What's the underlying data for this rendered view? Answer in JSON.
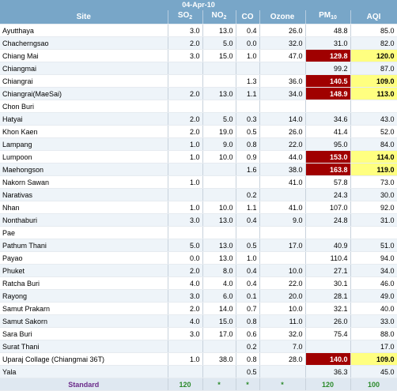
{
  "date": "04-Apr-10",
  "columns": {
    "site": "Site",
    "so2_main": "SO",
    "so2_sub": "2",
    "no2_main": "NO",
    "no2_sub": "2",
    "co": "CO",
    "ozone": "Ozone",
    "pm10_main": "PM",
    "pm10_sub": "10",
    "aqi": "AQI"
  },
  "rows": [
    {
      "site": "Ayutthaya",
      "so2": "3.0",
      "no2": "13.0",
      "co": "0.4",
      "ozone": "26.0",
      "pm10": "48.8",
      "aqi": "85.0"
    },
    {
      "site": "Chacherngsao",
      "so2": "2.0",
      "no2": "5.0",
      "co": "0.0",
      "ozone": "32.0",
      "pm10": "31.0",
      "aqi": "82.0"
    },
    {
      "site": "Chiang Mai",
      "so2": "3.0",
      "no2": "15.0",
      "co": "1.0",
      "ozone": "47.0",
      "pm10": "129.8",
      "aqi": "120.0"
    },
    {
      "site": "Chiangmai",
      "so2": "",
      "no2": "",
      "co": "",
      "ozone": "",
      "pm10": "99.2",
      "aqi": "87.0"
    },
    {
      "site": "Chiangrai",
      "so2": "",
      "no2": "",
      "co": "1.3",
      "ozone": "36.0",
      "pm10": "140.5",
      "aqi": "109.0"
    },
    {
      "site": "Chiangrai(MaeSai)",
      "so2": "2.0",
      "no2": "13.0",
      "co": "1.1",
      "ozone": "34.0",
      "pm10": "148.9",
      "aqi": "113.0"
    },
    {
      "site": "Chon Buri",
      "so2": "",
      "no2": "",
      "co": "",
      "ozone": "",
      "pm10": "",
      "aqi": ""
    },
    {
      "site": "Hatyai",
      "so2": "2.0",
      "no2": "5.0",
      "co": "0.3",
      "ozone": "14.0",
      "pm10": "34.6",
      "aqi": "43.0"
    },
    {
      "site": "Khon Kaen",
      "so2": "2.0",
      "no2": "19.0",
      "co": "0.5",
      "ozone": "26.0",
      "pm10": "41.4",
      "aqi": "52.0"
    },
    {
      "site": "Lampang",
      "so2": "1.0",
      "no2": "9.0",
      "co": "0.8",
      "ozone": "22.0",
      "pm10": "95.0",
      "aqi": "84.0"
    },
    {
      "site": "Lumpoon",
      "so2": "1.0",
      "no2": "10.0",
      "co": "0.9",
      "ozone": "44.0",
      "pm10": "153.0",
      "aqi": "114.0"
    },
    {
      "site": "Maehongson",
      "so2": "",
      "no2": "",
      "co": "1.6",
      "ozone": "38.0",
      "pm10": "163.8",
      "aqi": "119.0"
    },
    {
      "site": "Nakorn Sawan",
      "so2": "1.0",
      "no2": "",
      "co": "",
      "ozone": "41.0",
      "pm10": "57.8",
      "aqi": "73.0"
    },
    {
      "site": "Narativas",
      "so2": "",
      "no2": "",
      "co": "0.2",
      "ozone": "",
      "pm10": "24.3",
      "aqi": "30.0"
    },
    {
      "site": "Nhan",
      "so2": "1.0",
      "no2": "10.0",
      "co": "1.1",
      "ozone": "41.0",
      "pm10": "107.0",
      "aqi": "92.0"
    },
    {
      "site": "Nonthaburi",
      "so2": "3.0",
      "no2": "13.0",
      "co": "0.4",
      "ozone": "9.0",
      "pm10": "24.8",
      "aqi": "31.0"
    },
    {
      "site": "Pae",
      "so2": "",
      "no2": "",
      "co": "",
      "ozone": "",
      "pm10": "",
      "aqi": ""
    },
    {
      "site": "Pathum Thani",
      "so2": "5.0",
      "no2": "13.0",
      "co": "0.5",
      "ozone": "17.0",
      "pm10": "40.9",
      "aqi": "51.0"
    },
    {
      "site": "Payao",
      "so2": "0.0",
      "no2": "13.0",
      "co": "1.0",
      "ozone": "",
      "pm10": "110.4",
      "aqi": "94.0"
    },
    {
      "site": "Phuket",
      "so2": "2.0",
      "no2": "8.0",
      "co": "0.4",
      "ozone": "10.0",
      "pm10": "27.1",
      "aqi": "34.0"
    },
    {
      "site": "Ratcha Buri",
      "so2": "4.0",
      "no2": "4.0",
      "co": "0.4",
      "ozone": "22.0",
      "pm10": "30.1",
      "aqi": "46.0"
    },
    {
      "site": "Rayong",
      "so2": "3.0",
      "no2": "6.0",
      "co": "0.1",
      "ozone": "20.0",
      "pm10": "28.1",
      "aqi": "49.0"
    },
    {
      "site": "Samut Prakarn",
      "so2": "2.0",
      "no2": "14.0",
      "co": "0.7",
      "ozone": "10.0",
      "pm10": "32.1",
      "aqi": "40.0"
    },
    {
      "site": "Samut Sakorn",
      "so2": "4.0",
      "no2": "15.0",
      "co": "0.8",
      "ozone": "11.0",
      "pm10": "26.0",
      "aqi": "33.0"
    },
    {
      "site": "Sara Buri",
      "so2": "3.0",
      "no2": "17.0",
      "co": "0.6",
      "ozone": "32.0",
      "pm10": "75.4",
      "aqi": "88.0"
    },
    {
      "site": "Surat Thani",
      "so2": "",
      "no2": "",
      "co": "0.2",
      "ozone": "7.0",
      "pm10": "",
      "aqi": "17.0"
    },
    {
      "site": "Uparaj Collage (Chiangmai 36T)",
      "so2": "1.0",
      "no2": "38.0",
      "co": "0.8",
      "ozone": "28.0",
      "pm10": "140.0",
      "aqi": "109.0"
    },
    {
      "site": "Yala",
      "so2": "",
      "no2": "",
      "co": "0.5",
      "ozone": "",
      "pm10": "36.3",
      "aqi": "45.0"
    }
  ],
  "highlight": {
    "pm10_red_rows": [
      2,
      4,
      5,
      10,
      11,
      26
    ],
    "aqi_yellow_rows": [
      2,
      4,
      5,
      10,
      11,
      26
    ]
  },
  "standard": {
    "label": "Standard",
    "so2": "120",
    "no2": "*",
    "co": "*",
    "ozone": "*",
    "pm10": "120",
    "aqi": "100"
  },
  "colors": {
    "header_bg": "#78a6c8",
    "exceed_pm10": "#a00000",
    "exceed_aqi": "#ffff80",
    "standard_text": "#2a8a2a"
  }
}
